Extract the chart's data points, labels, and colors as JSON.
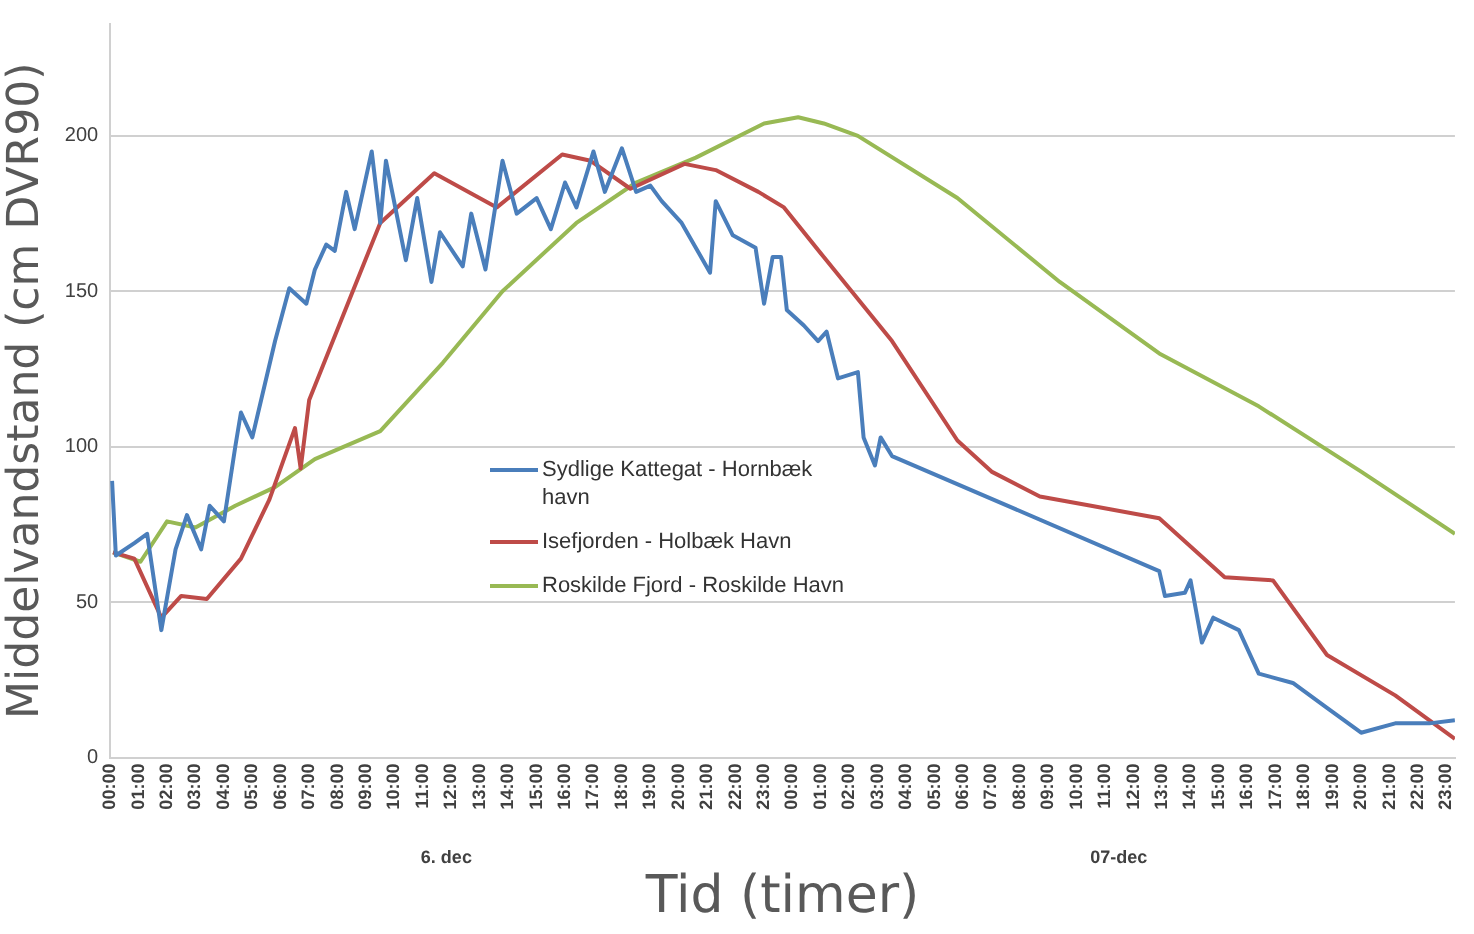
{
  "chart_data": {
    "type": "line",
    "xlabel": "Tid (timer)",
    "ylabel": "Middelvandstand (cm DVR90)",
    "annotations": [
      "6. dec",
      "07-dec"
    ],
    "xlim": [
      "--12-06T00:00",
      "--12-07T23:18"
    ],
    "ylim": [
      0,
      236
    ],
    "xticks": [
      {
        "value": "--12-06T00:00",
        "label": "00:00"
      },
      {
        "value": "--12-06T01:00",
        "label": "01:00"
      },
      {
        "value": "--12-06T02:00",
        "label": "02:00"
      },
      {
        "value": "--12-06T03:00",
        "label": "03:00"
      },
      {
        "value": "--12-06T04:00",
        "label": "04:00"
      },
      {
        "value": "--12-06T05:00",
        "label": "05:00"
      },
      {
        "value": "--12-06T06:00",
        "label": "06:00"
      },
      {
        "value": "--12-06T07:00",
        "label": "07:00"
      },
      {
        "value": "--12-06T08:00",
        "label": "08:00"
      },
      {
        "value": "--12-06T09:00",
        "label": "09:00"
      },
      {
        "value": "--12-06T10:00",
        "label": "10:00"
      },
      {
        "value": "--12-06T11:00",
        "label": "11:00"
      },
      {
        "value": "--12-06T12:00",
        "label": "12:00"
      },
      {
        "value": "--12-06T13:00",
        "label": "13:00"
      },
      {
        "value": "--12-06T14:00",
        "label": "14:00"
      },
      {
        "value": "--12-06T15:00",
        "label": "15:00"
      },
      {
        "value": "--12-06T16:00",
        "label": "16:00"
      },
      {
        "value": "--12-06T17:00",
        "label": "17:00"
      },
      {
        "value": "--12-06T18:00",
        "label": "18:00"
      },
      {
        "value": "--12-06T19:00",
        "label": "19:00"
      },
      {
        "value": "--12-06T20:00",
        "label": "20:00"
      },
      {
        "value": "--12-06T21:00",
        "label": "21:00"
      },
      {
        "value": "--12-06T22:00",
        "label": "22:00"
      },
      {
        "value": "--12-06T23:00",
        "label": "23:00"
      },
      {
        "value": "--12-07T00:00",
        "label": "00:00"
      },
      {
        "value": "--12-07T01:00",
        "label": "01:00"
      },
      {
        "value": "--12-07T02:00",
        "label": "02:00"
      },
      {
        "value": "--12-07T03:00",
        "label": "03:00"
      },
      {
        "value": "--12-07T04:00",
        "label": "04:00"
      },
      {
        "value": "--12-07T05:00",
        "label": "05:00"
      },
      {
        "value": "--12-07T06:00",
        "label": "06:00"
      },
      {
        "value": "--12-07T07:00",
        "label": "07:00"
      },
      {
        "value": "--12-07T08:00",
        "label": "08:00"
      },
      {
        "value": "--12-07T09:00",
        "label": "09:00"
      },
      {
        "value": "--12-07T10:00",
        "label": "10:00"
      },
      {
        "value": "--12-07T11:00",
        "label": "11:00"
      },
      {
        "value": "--12-07T12:00",
        "label": "12:00"
      },
      {
        "value": "--12-07T13:00",
        "label": "13:00"
      },
      {
        "value": "--12-07T14:00",
        "label": "14:00"
      },
      {
        "value": "--12-07T15:00",
        "label": "15:00"
      },
      {
        "value": "--12-07T16:00",
        "label": "16:00"
      },
      {
        "value": "--12-07T17:00",
        "label": "17:00"
      },
      {
        "value": "--12-07T18:00",
        "label": "18:00"
      },
      {
        "value": "--12-07T19:00",
        "label": "19:00"
      },
      {
        "value": "--12-07T20:00",
        "label": "20:00"
      },
      {
        "value": "--12-07T21:00",
        "label": "21:00"
      },
      {
        "value": "--12-07T22:00",
        "label": "22:00"
      },
      {
        "value": "--12-07T23:00",
        "label": "23:00"
      }
    ],
    "yticks": [
      0,
      50,
      100,
      150,
      200
    ],
    "grid": "y",
    "legend": "center",
    "marker": "none",
    "line_style": "solid",
    "series": [
      {
        "name": "Sydlige Kattegat   -   Hornbæk havn",
        "color": "#4a7ebb",
        "x": [
          "--12-06T00:04",
          "--12-06T00:12",
          "--12-06T00:51",
          "--12-06T01:18",
          "--12-06T01:48",
          "--12-06T02:18",
          "--12-06T02:42",
          "--12-06T03:12",
          "--12-06T03:30",
          "--12-06T04:00",
          "--12-06T04:24",
          "--12-06T04:36",
          "--12-06T05:00",
          "--12-06T05:48",
          "--12-06T06:18",
          "--12-06T06:54",
          "--12-06T07:12",
          "--12-06T07:36",
          "--12-06T07:54",
          "--12-06T08:18",
          "--12-06T08:36",
          "--12-06T09:12",
          "--12-06T09:30",
          "--12-06T09:42",
          "--12-06T10:24",
          "--12-06T10:48",
          "--12-06T11:18",
          "--12-06T11:36",
          "--12-06T12:24",
          "--12-06T12:42",
          "--12-06T13:12",
          "--12-06T13:48",
          "--12-06T14:18",
          "--12-06T15:00",
          "--12-06T15:30",
          "--12-06T16:00",
          "--12-06T16:24",
          "--12-06T17:00",
          "--12-06T17:24",
          "--12-06T18:00",
          "--12-06T18:30",
          "--12-06T19:00",
          "--12-06T19:24",
          "--12-06T20:06",
          "--12-06T21:06",
          "--12-06T21:18",
          "--12-06T21:54",
          "--12-06T22:42",
          "--12-06T23:00",
          "--12-06T23:18",
          "--12-06T23:36",
          "--12-06T23:48",
          "--12-07T00:24",
          "--12-07T00:54",
          "--12-07T01:12",
          "--12-07T01:36",
          "--12-07T02:18",
          "--12-07T02:30",
          "--12-07T02:54",
          "--12-07T03:06",
          "--12-07T03:30",
          "--12-07T12:54",
          "--12-07T13:06",
          "--12-07T13:48",
          "--12-07T14:00",
          "--12-07T14:24",
          "--12-07T14:48",
          "--12-07T15:42",
          "--12-07T16:24",
          "--12-07T17:36",
          "--12-07T18:48",
          "--12-07T20:00",
          "--12-07T21:12",
          "--12-07T22:24",
          "--12-07T23:18"
        ],
        "values": [
          89,
          65,
          69,
          72,
          41,
          67,
          78,
          67,
          81,
          76,
          100,
          111,
          103,
          134,
          151,
          146,
          157,
          165,
          163,
          182,
          170,
          195,
          172,
          192,
          160,
          180,
          153,
          169,
          158,
          175,
          157,
          192,
          175,
          180,
          170,
          185,
          177,
          195,
          182,
          196,
          182,
          184,
          179,
          172,
          156,
          179,
          168,
          164,
          146,
          161,
          161,
          144,
          139,
          134,
          137,
          122,
          124,
          103,
          94,
          103,
          97,
          60,
          52,
          53,
          57,
          37,
          45,
          41,
          27,
          24,
          16,
          8,
          11,
          11,
          12
        ]
      },
      {
        "name": "Isefjorden   -   Holbæk Havn",
        "color": "#be4b48",
        "x": [
          "--12-06T00:06",
          "--12-06T00:51",
          "--12-06T01:48",
          "--12-06T02:30",
          "--12-06T03:24",
          "--12-06T04:36",
          "--12-06T05:36",
          "--12-06T06:30",
          "--12-06T06:42",
          "--12-06T07:00",
          "--12-06T08:24",
          "--12-06T09:30",
          "--12-06T11:24",
          "--12-06T13:36",
          "--12-06T15:54",
          "--12-06T16:54",
          "--12-06T18:18",
          "--12-06T20:12",
          "--12-06T21:18",
          "--12-06T22:48",
          "--12-06T23:42",
          "--12-07T01:06",
          "--12-07T03:30",
          "--12-07T05:48",
          "--12-07T07:00",
          "--12-07T08:42",
          "--12-07T10:30",
          "--12-07T12:54",
          "--12-07T15:12",
          "--12-07T16:54",
          "--12-07T18:48",
          "--12-07T21:12",
          "--12-07T23:18"
        ],
        "values": [
          66,
          64,
          45,
          52,
          51,
          64,
          83,
          106,
          93,
          115,
          147,
          172,
          188,
          177,
          194,
          192,
          183,
          191,
          189,
          182,
          177,
          161,
          134,
          102,
          92,
          84,
          81,
          77,
          58,
          57,
          33,
          20,
          6
        ]
      },
      {
        "name": "Roskilde Fjord   -   Roskilde Havn",
        "color": "#98b954",
        "x": [
          "--12-06T00:06",
          "--12-06T01:04",
          "--12-06T02:00",
          "--12-06T03:00",
          "--12-06T04:24",
          "--12-06T05:48",
          "--12-06T07:12",
          "--12-06T09:30",
          "--12-06T11:42",
          "--12-06T13:48",
          "--12-06T16:24",
          "--12-06T18:30",
          "--12-06T20:36",
          "--12-06T23:00",
          "--12-07T00:12",
          "--12-07T01:06",
          "--12-07T02:18",
          "--12-07T05:48",
          "--12-07T09:24",
          "--12-07T12:54",
          "--12-07T16:24",
          "--12-07T20:00",
          "--12-07T23:18"
        ],
        "values": [
          66,
          63,
          76,
          74,
          81,
          87,
          96,
          105,
          127,
          150,
          172,
          185,
          193,
          204,
          206,
          204,
          200,
          180,
          153,
          130,
          113,
          92,
          72
        ]
      }
    ]
  }
}
